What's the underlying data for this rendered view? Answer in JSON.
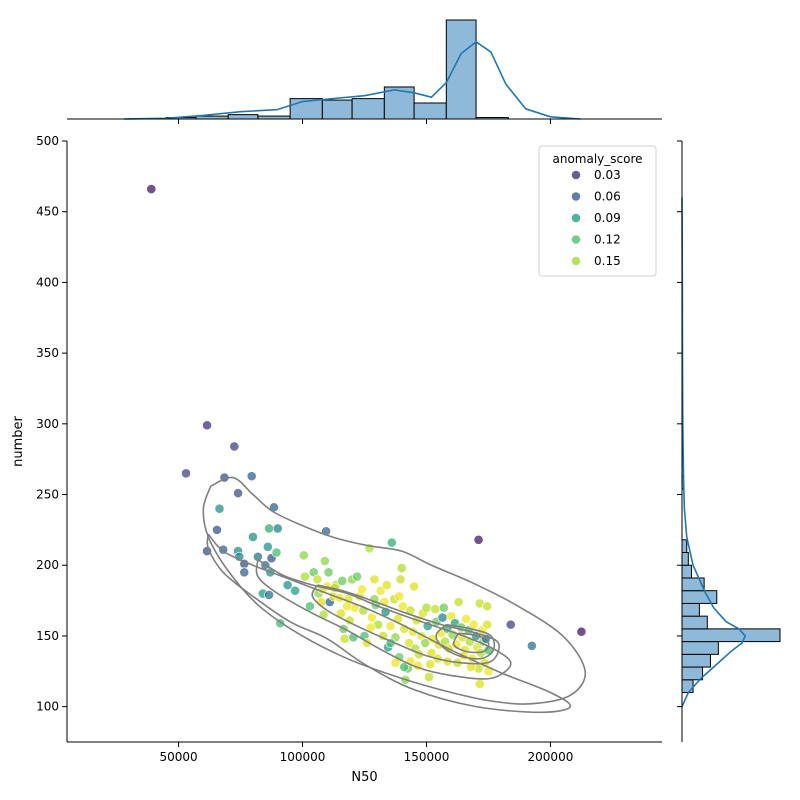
{
  "chart_data": {
    "type": "scatter",
    "title": "",
    "xlabel": "N50",
    "ylabel": "number",
    "xlim": [
      5000,
      245000
    ],
    "ylim": [
      75,
      500
    ],
    "xticks": [
      50000,
      100000,
      150000,
      200000
    ],
    "xtick_labels": [
      "50000",
      "100000",
      "150000",
      "200000"
    ],
    "yticks": [
      100,
      150,
      200,
      250,
      300,
      350,
      400,
      450,
      500
    ],
    "ytick_labels": [
      "100",
      "150",
      "200",
      "250",
      "300",
      "350",
      "400",
      "450",
      "500"
    ],
    "legend": {
      "title": "anomaly_score",
      "placement": "top-right",
      "entries": [
        {
          "label": "0.03",
          "color": "#46337e"
        },
        {
          "label": "0.06",
          "color": "#365c8d"
        },
        {
          "label": "0.09",
          "color": "#1fa187"
        },
        {
          "label": "0.12",
          "color": "#4ac16d"
        },
        {
          "label": "0.15",
          "color": "#a0da39"
        }
      ]
    },
    "colormap": [
      "#440154",
      "#46337e",
      "#365c8d",
      "#277f8e",
      "#1fa187",
      "#4ac16d",
      "#a0da39",
      "#d8e219",
      "#fde725"
    ],
    "score_range": [
      0.0,
      0.18
    ],
    "points": [
      [
        39000,
        466,
        0.01
      ],
      [
        61500,
        299,
        0.02
      ],
      [
        72500,
        284,
        0.03
      ],
      [
        53000,
        265,
        0.03
      ],
      [
        68500,
        262,
        0.04
      ],
      [
        79500,
        263,
        0.05
      ],
      [
        74000,
        251,
        0.04
      ],
      [
        88500,
        241,
        0.05
      ],
      [
        66500,
        240,
        0.08
      ],
      [
        109500,
        224,
        0.05
      ],
      [
        171000,
        218,
        0.01
      ],
      [
        212500,
        153,
        0.01
      ],
      [
        184000,
        158,
        0.03
      ],
      [
        192500,
        143,
        0.06
      ],
      [
        61500,
        210,
        0.04
      ],
      [
        68000,
        211,
        0.05
      ],
      [
        65500,
        225,
        0.04
      ],
      [
        74000,
        210,
        0.08
      ],
      [
        74500,
        206,
        0.07
      ],
      [
        76500,
        201,
        0.04
      ],
      [
        76500,
        195,
        0.05
      ],
      [
        80000,
        220,
        0.08
      ],
      [
        82000,
        206,
        0.06
      ],
      [
        85000,
        200,
        0.06
      ],
      [
        86000,
        213,
        0.08
      ],
      [
        86500,
        226,
        0.1
      ],
      [
        87000,
        195,
        0.08
      ],
      [
        87500,
        205,
        0.04
      ],
      [
        90000,
        226,
        0.07
      ],
      [
        89500,
        209,
        0.11
      ],
      [
        84000,
        180,
        0.09
      ],
      [
        86500,
        179,
        0.06
      ],
      [
        91000,
        159,
        0.11
      ],
      [
        94000,
        186,
        0.08
      ],
      [
        97000,
        182,
        0.09
      ],
      [
        100500,
        207,
        0.13
      ],
      [
        101000,
        192,
        0.14
      ],
      [
        104500,
        195,
        0.12
      ],
      [
        106000,
        190,
        0.15
      ],
      [
        106500,
        180,
        0.13
      ],
      [
        107500,
        174,
        0.16
      ],
      [
        108500,
        165,
        0.14
      ],
      [
        109000,
        203,
        0.13
      ],
      [
        110000,
        185,
        0.17
      ],
      [
        111000,
        174,
        0.05
      ],
      [
        112500,
        178,
        0.16
      ],
      [
        113500,
        186,
        0.14
      ],
      [
        115000,
        177,
        0.17
      ],
      [
        116000,
        189,
        0.12
      ],
      [
        116500,
        155,
        0.12
      ],
      [
        117000,
        148,
        0.15
      ],
      [
        118500,
        176,
        0.16
      ],
      [
        119000,
        161,
        0.15
      ],
      [
        120000,
        190,
        0.13
      ],
      [
        121000,
        170,
        0.17
      ],
      [
        122000,
        192,
        0.12
      ],
      [
        123000,
        178,
        0.16
      ],
      [
        124500,
        168,
        0.14
      ],
      [
        125000,
        150,
        0.11
      ],
      [
        126000,
        145,
        0.16
      ],
      [
        127000,
        212,
        0.14
      ],
      [
        128000,
        163,
        0.17
      ],
      [
        129000,
        190,
        0.16
      ],
      [
        129500,
        172,
        0.12
      ],
      [
        130500,
        158,
        0.14
      ],
      [
        131500,
        182,
        0.17
      ],
      [
        132500,
        150,
        0.15
      ],
      [
        133500,
        167,
        0.08
      ],
      [
        134000,
        186,
        0.16
      ],
      [
        134500,
        142,
        0.09
      ],
      [
        135500,
        157,
        0.17
      ],
      [
        136000,
        216,
        0.1
      ],
      [
        137000,
        176,
        0.15
      ],
      [
        137500,
        149,
        0.13
      ],
      [
        138500,
        162,
        0.16
      ],
      [
        139000,
        135,
        0.12
      ],
      [
        139500,
        190,
        0.15
      ],
      [
        140000,
        198,
        0.14
      ],
      [
        140500,
        171,
        0.17
      ],
      [
        141000,
        155,
        0.16
      ],
      [
        141500,
        119,
        0.13
      ],
      [
        142500,
        127,
        0.12
      ],
      [
        143000,
        145,
        0.16
      ],
      [
        143500,
        168,
        0.15
      ],
      [
        144500,
        153,
        0.17
      ],
      [
        145500,
        141,
        0.14
      ],
      [
        146000,
        161,
        0.16
      ],
      [
        147000,
        137,
        0.15
      ],
      [
        148000,
        150,
        0.17
      ],
      [
        148500,
        166,
        0.16
      ],
      [
        149500,
        145,
        0.13
      ],
      [
        150000,
        170,
        0.14
      ],
      [
        150500,
        157,
        0.09
      ],
      [
        151000,
        121,
        0.15
      ],
      [
        152000,
        138,
        0.16
      ],
      [
        152500,
        148,
        0.17
      ],
      [
        153500,
        169,
        0.15
      ],
      [
        154000,
        160,
        0.12
      ],
      [
        155000,
        144,
        0.16
      ],
      [
        156000,
        152,
        0.17
      ],
      [
        156500,
        163,
        0.07
      ],
      [
        157500,
        146,
        0.14
      ],
      [
        158500,
        155,
        0.1
      ],
      [
        159000,
        141,
        0.16
      ],
      [
        160000,
        164,
        0.17
      ],
      [
        160500,
        151,
        0.13
      ],
      [
        161500,
        159,
        0.09
      ],
      [
        162000,
        144,
        0.17
      ],
      [
        163000,
        174,
        0.15
      ],
      [
        164000,
        156,
        0.12
      ],
      [
        164500,
        149,
        0.16
      ],
      [
        165500,
        140,
        0.16
      ],
      [
        166000,
        162,
        0.17
      ],
      [
        167000,
        154,
        0.11
      ],
      [
        167500,
        146,
        0.14
      ],
      [
        168500,
        134,
        0.17
      ],
      [
        169000,
        158,
        0.17
      ],
      [
        170000,
        150,
        0.08
      ],
      [
        170500,
        142,
        0.16
      ],
      [
        171000,
        127,
        0.15
      ],
      [
        171500,
        116,
        0.16
      ],
      [
        171500,
        173,
        0.15
      ],
      [
        172000,
        138,
        0.14
      ],
      [
        172500,
        154,
        0.17
      ],
      [
        173000,
        146,
        0.12
      ],
      [
        173500,
        131,
        0.16
      ],
      [
        174000,
        148,
        0.06
      ],
      [
        174500,
        171,
        0.15
      ],
      [
        174500,
        158,
        0.16
      ],
      [
        175000,
        140,
        0.11
      ],
      [
        175000,
        125,
        0.17
      ],
      [
        135500,
        145,
        0.11
      ],
      [
        137500,
        131,
        0.17
      ],
      [
        141000,
        128,
        0.11
      ],
      [
        143500,
        132,
        0.17
      ],
      [
        154500,
        134,
        0.16
      ],
      [
        120500,
        149,
        0.11
      ],
      [
        118000,
        171,
        0.17
      ],
      [
        113000,
        184,
        0.15
      ],
      [
        129000,
        176,
        0.13
      ],
      [
        133000,
        174,
        0.17
      ],
      [
        146500,
        129,
        0.17
      ],
      [
        151500,
        130,
        0.16
      ],
      [
        158500,
        132,
        0.16
      ],
      [
        165000,
        136,
        0.17
      ],
      [
        168000,
        128,
        0.16
      ],
      [
        145000,
        185,
        0.16
      ],
      [
        108000,
        183,
        0.16
      ],
      [
        124000,
        183,
        0.17
      ],
      [
        127500,
        156,
        0.17
      ],
      [
        139000,
        178,
        0.17
      ],
      [
        103000,
        171,
        0.11
      ],
      [
        110500,
        195,
        0.12
      ],
      [
        115500,
        166,
        0.16
      ],
      [
        157000,
        170,
        0.12
      ],
      [
        162500,
        131,
        0.15
      ]
    ],
    "kde_levels": [
      [
        [
          62000,
          222
        ],
        [
          68000,
          210
        ],
        [
          80000,
          200
        ],
        [
          95000,
          190
        ],
        [
          110000,
          180
        ],
        [
          125000,
          170
        ],
        [
          140000,
          158
        ],
        [
          160000,
          140
        ],
        [
          180000,
          124
        ],
        [
          200000,
          110
        ],
        [
          208000,
          100
        ],
        [
          196000,
          96
        ],
        [
          170000,
          100
        ],
        [
          145000,
          112
        ],
        [
          125000,
          130
        ],
        [
          110000,
          148
        ],
        [
          95000,
          160
        ],
        [
          80000,
          178
        ],
        [
          68000,
          195
        ],
        [
          62000,
          212
        ],
        [
          62000,
          222
        ]
      ],
      [
        [
          82000,
          204
        ],
        [
          92000,
          193
        ],
        [
          104000,
          186
        ],
        [
          118000,
          180
        ],
        [
          132000,
          170
        ],
        [
          148000,
          160
        ],
        [
          165000,
          150
        ],
        [
          178000,
          140
        ],
        [
          184000,
          130
        ],
        [
          176000,
          120
        ],
        [
          160000,
          122
        ],
        [
          146000,
          128
        ],
        [
          132000,
          140
        ],
        [
          118000,
          154
        ],
        [
          104000,
          166
        ],
        [
          90000,
          180
        ],
        [
          82000,
          192
        ],
        [
          82000,
          204
        ]
      ],
      [
        [
          106000,
          186
        ],
        [
          116000,
          182
        ],
        [
          128000,
          175
        ],
        [
          142000,
          166
        ],
        [
          156000,
          158
        ],
        [
          170000,
          152
        ],
        [
          179000,
          145
        ],
        [
          176000,
          132
        ],
        [
          164000,
          131
        ],
        [
          150000,
          136
        ],
        [
          136000,
          146
        ],
        [
          122000,
          157
        ],
        [
          110000,
          168
        ],
        [
          104000,
          178
        ],
        [
          106000,
          186
        ]
      ],
      [
        [
          158000,
          158
        ],
        [
          168000,
          155
        ],
        [
          176000,
          150
        ],
        [
          177000,
          140
        ],
        [
          172000,
          134
        ],
        [
          163000,
          136
        ],
        [
          156000,
          143
        ],
        [
          154000,
          151
        ],
        [
          158000,
          158
        ]
      ],
      [
        [
          163000,
          152
        ],
        [
          171000,
          150
        ],
        [
          175000,
          145
        ],
        [
          173000,
          139
        ],
        [
          166000,
          139
        ],
        [
          161000,
          144
        ],
        [
          163000,
          152
        ]
      ]
    ],
    "kde_extra_contour": [
      [
        63000,
        256
      ],
      [
        72000,
        262
      ],
      [
        80000,
        250
      ],
      [
        88000,
        238
      ],
      [
        100000,
        228
      ],
      [
        112000,
        220
      ],
      [
        126000,
        214
      ],
      [
        140000,
        210
      ],
      [
        152000,
        200
      ],
      [
        168000,
        188
      ],
      [
        186000,
        172
      ],
      [
        205000,
        150
      ],
      [
        214000,
        125
      ],
      [
        208000,
        108
      ],
      [
        192000,
        102
      ],
      [
        176000,
        104
      ],
      [
        160000,
        110
      ],
      [
        140000,
        120
      ],
      [
        118000,
        134
      ],
      [
        98000,
        152
      ],
      [
        82000,
        172
      ],
      [
        70000,
        196
      ],
      [
        62000,
        220
      ],
      [
        60000,
        240
      ],
      [
        63000,
        256
      ]
    ],
    "x_hist": {
      "bin_edges": [
        32000,
        45000,
        57000,
        70000,
        82000,
        95000,
        108000,
        120000,
        133000,
        145000,
        158000,
        170000,
        183000,
        195000,
        208000,
        220000
      ],
      "counts": [
        0,
        1,
        2,
        3,
        2,
        14,
        13,
        14,
        22,
        11,
        68,
        1,
        0,
        0,
        0
      ],
      "kde_x": [
        28000,
        45000,
        60000,
        75000,
        90000,
        100000,
        112000,
        125000,
        137000,
        145000,
        152000,
        158000,
        164000,
        170000,
        176000,
        182000,
        190000,
        200000,
        212000
      ],
      "kde_y": [
        0,
        0.5,
        2.5,
        5,
        6.5,
        12,
        14,
        16,
        20,
        18,
        15,
        25,
        45,
        53,
        46,
        24,
        7,
        1.5,
        0
      ]
    },
    "y_hist": {
      "bin_edges": [
        110,
        119,
        128,
        137,
        146,
        155,
        164,
        173,
        182,
        191,
        200,
        209,
        218,
        254,
        263
      ],
      "counts": [
        7,
        13,
        18,
        23,
        62,
        16,
        11,
        22,
        14,
        6,
        4,
        3,
        0,
        1
      ],
      "kde_y": [
        100,
        110,
        120,
        130,
        140,
        145,
        150,
        155,
        160,
        170,
        180,
        190,
        200,
        210,
        220,
        240,
        260,
        300,
        350,
        400,
        460
      ],
      "kde_x": [
        0,
        4,
        12,
        22,
        32,
        38,
        40,
        36,
        28,
        20,
        15,
        11,
        7,
        5,
        3,
        1.5,
        1,
        0.5,
        0.3,
        0.2,
        0
      ]
    }
  }
}
